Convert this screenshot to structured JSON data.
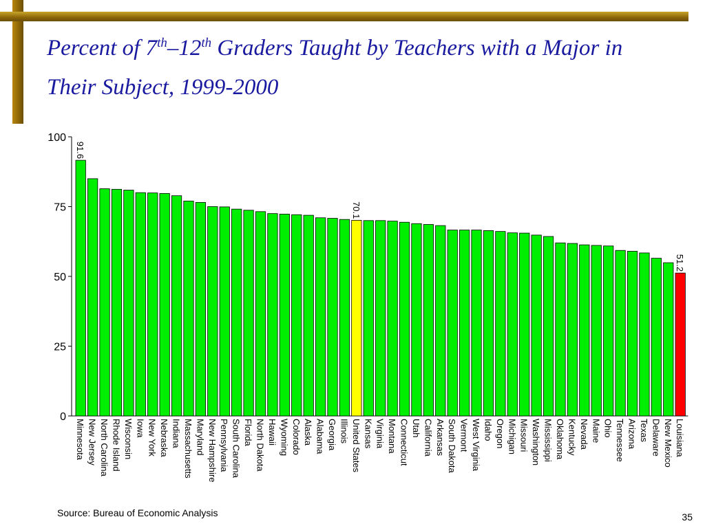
{
  "slide": {
    "title_parts": {
      "p1": "Percent of 7",
      "sup1": "th",
      "p2": "–12",
      "sup2": "th",
      "p3": " Graders Taught by Teachers with a Major in Their Subject, 1999-2000"
    },
    "source": "Source:  Bureau of Economic Analysis",
    "page_number": "35"
  },
  "colors": {
    "bar_default": "#00ee00",
    "bar_national": "#ffff00",
    "bar_lowest": "#ff0000",
    "title": "#1a1aa0"
  },
  "chart_data": {
    "type": "bar",
    "ylim": [
      0,
      100
    ],
    "yticks": [
      0,
      25,
      50,
      75,
      100
    ],
    "categories": [
      "Minnesota",
      "New Jersey",
      "North Carolina",
      "Rhode Island",
      "Wisconsin",
      "Iowa",
      "New York",
      "Nebraska",
      "Indiana",
      "Massachusetts",
      "Maryland",
      "New Hampshire",
      "Pennsylvania",
      "South Carolina",
      "Florida",
      "North Dakota",
      "Hawaii",
      "Wyoming",
      "Colorado",
      "Alaska",
      "Alabama",
      "Georgia",
      "Illinois",
      "United States",
      "Kansas",
      "Virginia",
      "Montana",
      "Connecticut",
      "Utah",
      "California",
      "Arkansas",
      "South Dakota",
      "Vermont",
      "West Virginia",
      "Idaho",
      "Oregon",
      "Michigan",
      "Missouri",
      "Washington",
      "Mississippi",
      "Oklahoma",
      "Kentucky",
      "Nevada",
      "Maine",
      "Ohio",
      "Tennessee",
      "Arizona",
      "Texas",
      "Delaware",
      "New Mexico",
      "Louisiana"
    ],
    "values": [
      91.6,
      85.0,
      81.4,
      81.2,
      80.9,
      80.0,
      79.9,
      79.7,
      78.9,
      77.0,
      76.5,
      75.0,
      74.9,
      74.1,
      73.7,
      73.2,
      72.5,
      72.3,
      72.1,
      71.9,
      71.0,
      70.8,
      70.4,
      70.1,
      70.0,
      70.0,
      69.8,
      69.4,
      68.9,
      68.6,
      68.2,
      66.6,
      66.6,
      66.6,
      66.4,
      66.1,
      65.6,
      65.5,
      64.8,
      64.3,
      62.0,
      61.8,
      61.3,
      61.1,
      60.9,
      59.3,
      59.0,
      58.4,
      56.5,
      54.9,
      51.2
    ],
    "highlight": {
      "United States": "national",
      "Louisiana": "lowest"
    },
    "data_labels": [
      {
        "category": "Minnesota",
        "text": "91.6"
      },
      {
        "category": "United States",
        "text": "70.1"
      },
      {
        "category": "Louisiana",
        "text": "51.2"
      }
    ]
  }
}
